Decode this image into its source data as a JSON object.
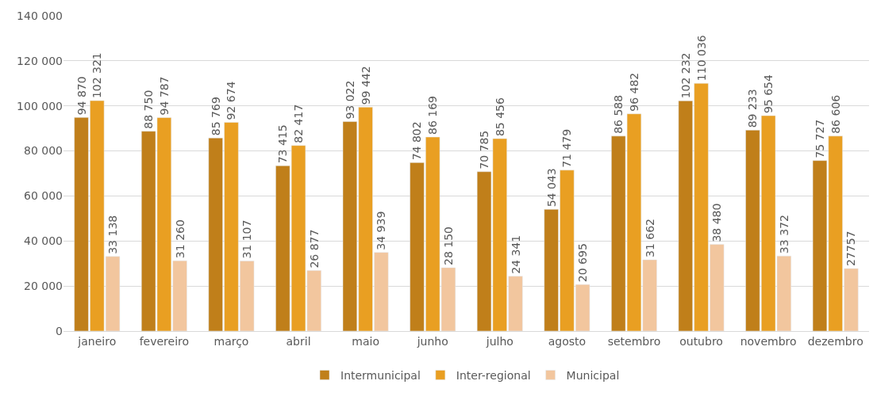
{
  "chart_data": {
    "type": "bar",
    "categories": [
      "janeiro",
      "fevereiro",
      "março",
      "abril",
      "maio",
      "junho",
      "julho",
      "agosto",
      "setembro",
      "outubro",
      "novembro",
      "dezembro"
    ],
    "series": [
      {
        "name": "Intermunicipal",
        "color": "#c07f1a",
        "values": [
          94870,
          88750,
          85769,
          73415,
          93022,
          74802,
          70785,
          54043,
          86588,
          102232,
          89233,
          75727
        ],
        "value_labels": [
          "94 870",
          "88 750",
          "85 769",
          "73 415",
          "93 022",
          "74 802",
          "70 785",
          "54 043",
          "86 588",
          "102 232",
          "89 233",
          "75 727"
        ]
      },
      {
        "name": "Inter-regional",
        "color": "#e99f22",
        "values": [
          102321,
          94787,
          92674,
          82417,
          99442,
          86169,
          85456,
          71479,
          96482,
          110036,
          95654,
          86606
        ],
        "value_labels": [
          "102 321",
          "94 787",
          "92 674",
          "82 417",
          "99 442",
          "86 169",
          "85 456",
          "71 479",
          "96 482",
          "110 036",
          "95 654",
          "86 606"
        ]
      },
      {
        "name": "Municipal",
        "color": "#f2c69e",
        "values": [
          33138,
          31260,
          31107,
          26877,
          34939,
          28150,
          24341,
          20695,
          31662,
          38480,
          33372,
          27757
        ],
        "value_labels": [
          "33 138",
          "31 260",
          "31 107",
          "26 877",
          "34 939",
          "28 150",
          "24 341",
          "20 695",
          "31 662",
          "38 480",
          "33 372",
          "27757"
        ]
      }
    ],
    "ylim": [
      0,
      140000
    ],
    "yticks": [
      0,
      {
        "value": 20000,
        "label": "20 000"
      },
      {
        "value": 40000,
        "label": "40 000"
      },
      {
        "value": 60000,
        "label": "60 000"
      },
      {
        "value": 80000,
        "label": "80 000"
      },
      {
        "value": 100000,
        "label": "100 000"
      },
      {
        "value": 120000,
        "label": "120 000"
      },
      {
        "value": 140000,
        "label": "140 000"
      }
    ],
    "grid": "y",
    "legend": "bottom"
  }
}
